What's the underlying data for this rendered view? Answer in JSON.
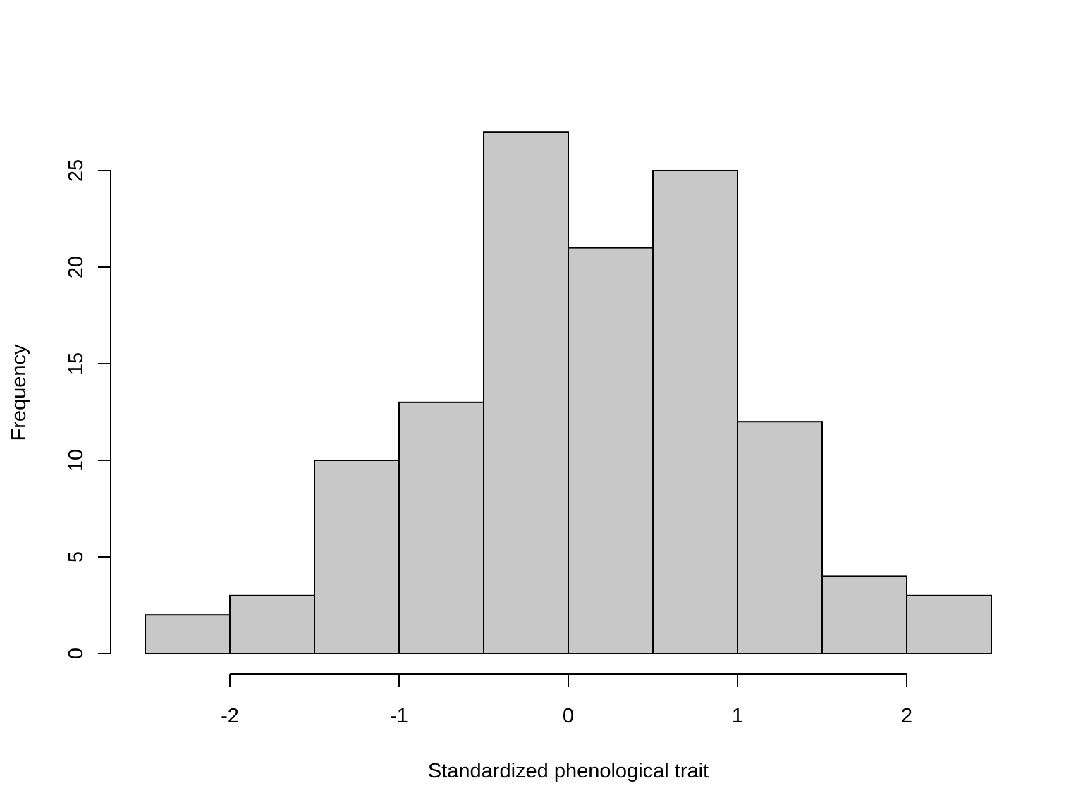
{
  "chart_data": {
    "type": "bar",
    "title": "",
    "xlabel": "Standardized phenological trait",
    "ylabel": "Frequency",
    "bins": [
      {
        "x0": -2.5,
        "x1": -2.0,
        "count": 2
      },
      {
        "x0": -2.0,
        "x1": -1.5,
        "count": 3
      },
      {
        "x0": -1.5,
        "x1": -1.0,
        "count": 10
      },
      {
        "x0": -1.0,
        "x1": -0.5,
        "count": 13
      },
      {
        "x0": -0.5,
        "x1": 0.0,
        "count": 27
      },
      {
        "x0": 0.0,
        "x1": 0.5,
        "count": 21
      },
      {
        "x0": 0.5,
        "x1": 1.0,
        "count": 25
      },
      {
        "x0": 1.0,
        "x1": 1.5,
        "count": 12
      },
      {
        "x0": 1.5,
        "x1": 2.0,
        "count": 4
      },
      {
        "x0": 2.0,
        "x1": 2.5,
        "count": 3
      }
    ],
    "xticks": [
      "-2",
      "-1",
      "0",
      "1",
      "2"
    ],
    "xtick_values": [
      -2,
      -1,
      0,
      1,
      2
    ],
    "yticks": [
      "0",
      "5",
      "10",
      "15",
      "20",
      "25"
    ],
    "ytick_values": [
      0,
      5,
      10,
      15,
      20,
      25
    ],
    "xlim": [
      -2.5,
      2.5
    ],
    "ylim": [
      0,
      27
    ],
    "bar_color": "#c8c8c8",
    "edge_color": "#000000",
    "grid": false,
    "legend": "none"
  }
}
